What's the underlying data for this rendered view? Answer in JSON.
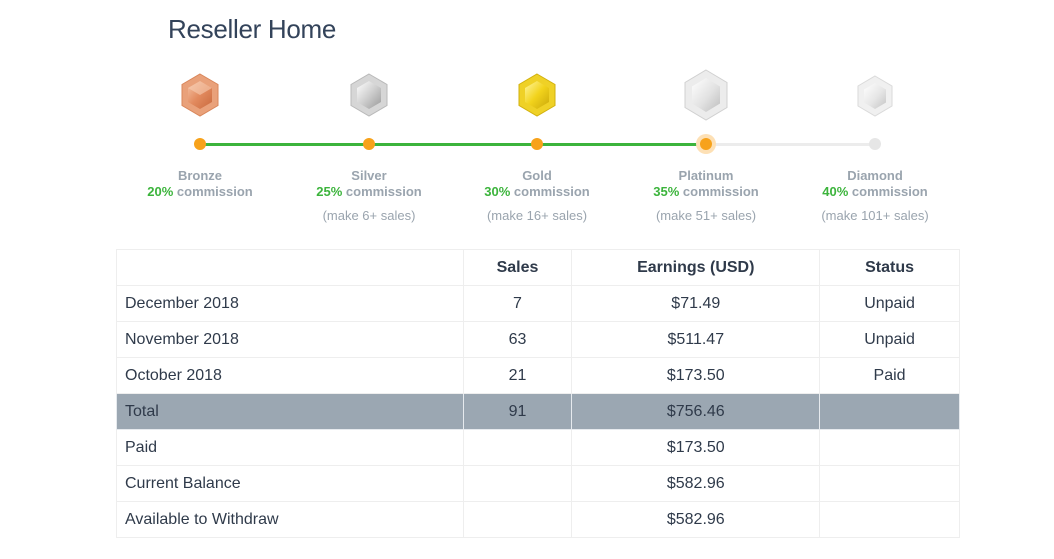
{
  "page_title": "Reseller Home",
  "tiers": [
    {
      "name": "Bronze",
      "commission": "20%",
      "commission_suffix": " commission",
      "requirement": "",
      "status": "achieved",
      "badge_icon": "bronze-hexagon-badge",
      "color": "#e8946a"
    },
    {
      "name": "Silver",
      "commission": "25%",
      "commission_suffix": " commission",
      "requirement": "(make 6+ sales)",
      "status": "achieved",
      "badge_icon": "silver-hexagon-badge",
      "color": "#c8c8c8"
    },
    {
      "name": "Gold",
      "commission": "30%",
      "commission_suffix": " commission",
      "requirement": "(make 16+ sales)",
      "status": "achieved",
      "badge_icon": "gold-hexagon-badge",
      "color": "#f0d21e"
    },
    {
      "name": "Platinum",
      "commission": "35%",
      "commission_suffix": " commission",
      "requirement": "(make 51+ sales)",
      "status": "current",
      "badge_icon": "platinum-hexagon-badge",
      "color": "#e4e4e4"
    },
    {
      "name": "Diamond",
      "commission": "40%",
      "commission_suffix": " commission",
      "requirement": "(make 101+ sales)",
      "status": "locked",
      "badge_icon": "diamond-hexagon-badge",
      "color": "#ededed"
    }
  ],
  "colors": {
    "progress_done": "#3cb43c",
    "progress_dot": "#f7a21b",
    "total_row": "#9ba7b2"
  },
  "table": {
    "headers": [
      "",
      "Sales",
      "Earnings (USD)",
      "Status"
    ],
    "rows": [
      {
        "label": "December 2018",
        "sales": "7",
        "earnings": "$71.49",
        "status": "Unpaid"
      },
      {
        "label": "November 2018",
        "sales": "63",
        "earnings": "$511.47",
        "status": "Unpaid"
      },
      {
        "label": "October 2018",
        "sales": "21",
        "earnings": "$173.50",
        "status": "Paid"
      }
    ],
    "total": {
      "label": "Total",
      "sales": "91",
      "earnings": "$756.46",
      "status": ""
    },
    "summary": [
      {
        "label": "Paid",
        "earnings": "$173.50"
      },
      {
        "label": "Current Balance",
        "earnings": "$582.96"
      },
      {
        "label": "Available to Withdraw",
        "earnings": "$582.96"
      }
    ]
  }
}
